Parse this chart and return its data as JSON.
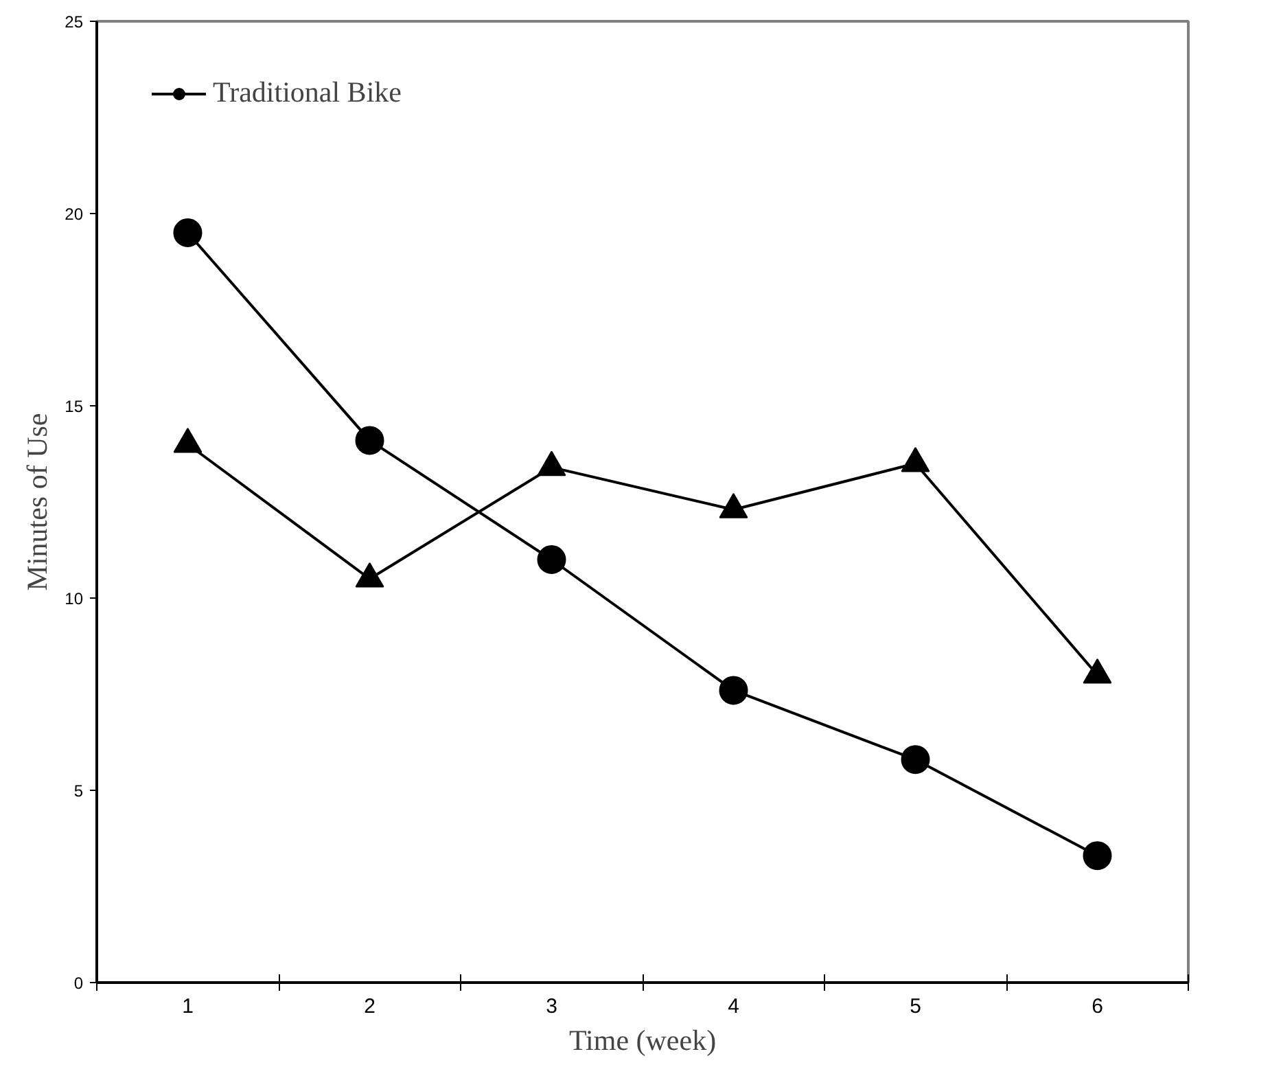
{
  "chart_data": {
    "type": "line",
    "xlabel": "Time (week)",
    "ylabel": "Minutes of Use",
    "categories": [
      "1",
      "2",
      "3",
      "4",
      "5",
      "6"
    ],
    "series": [
      {
        "color": "#000000",
        "marker": "triangle",
        "values": [
          14.0,
          10.5,
          13.4,
          12.3,
          13.5,
          8.0
        ]
      },
      {
        "name": "Traditional Bike",
        "color": "#000000",
        "marker": "circle",
        "values": [
          19.5,
          14.1,
          11.0,
          7.6,
          5.8,
          3.3
        ]
      }
    ],
    "ylim": [
      0,
      25
    ],
    "yticks": [
      0,
      5,
      10,
      15,
      20,
      25
    ],
    "grid": false,
    "legend": "top left",
    "line_style": "solid"
  }
}
